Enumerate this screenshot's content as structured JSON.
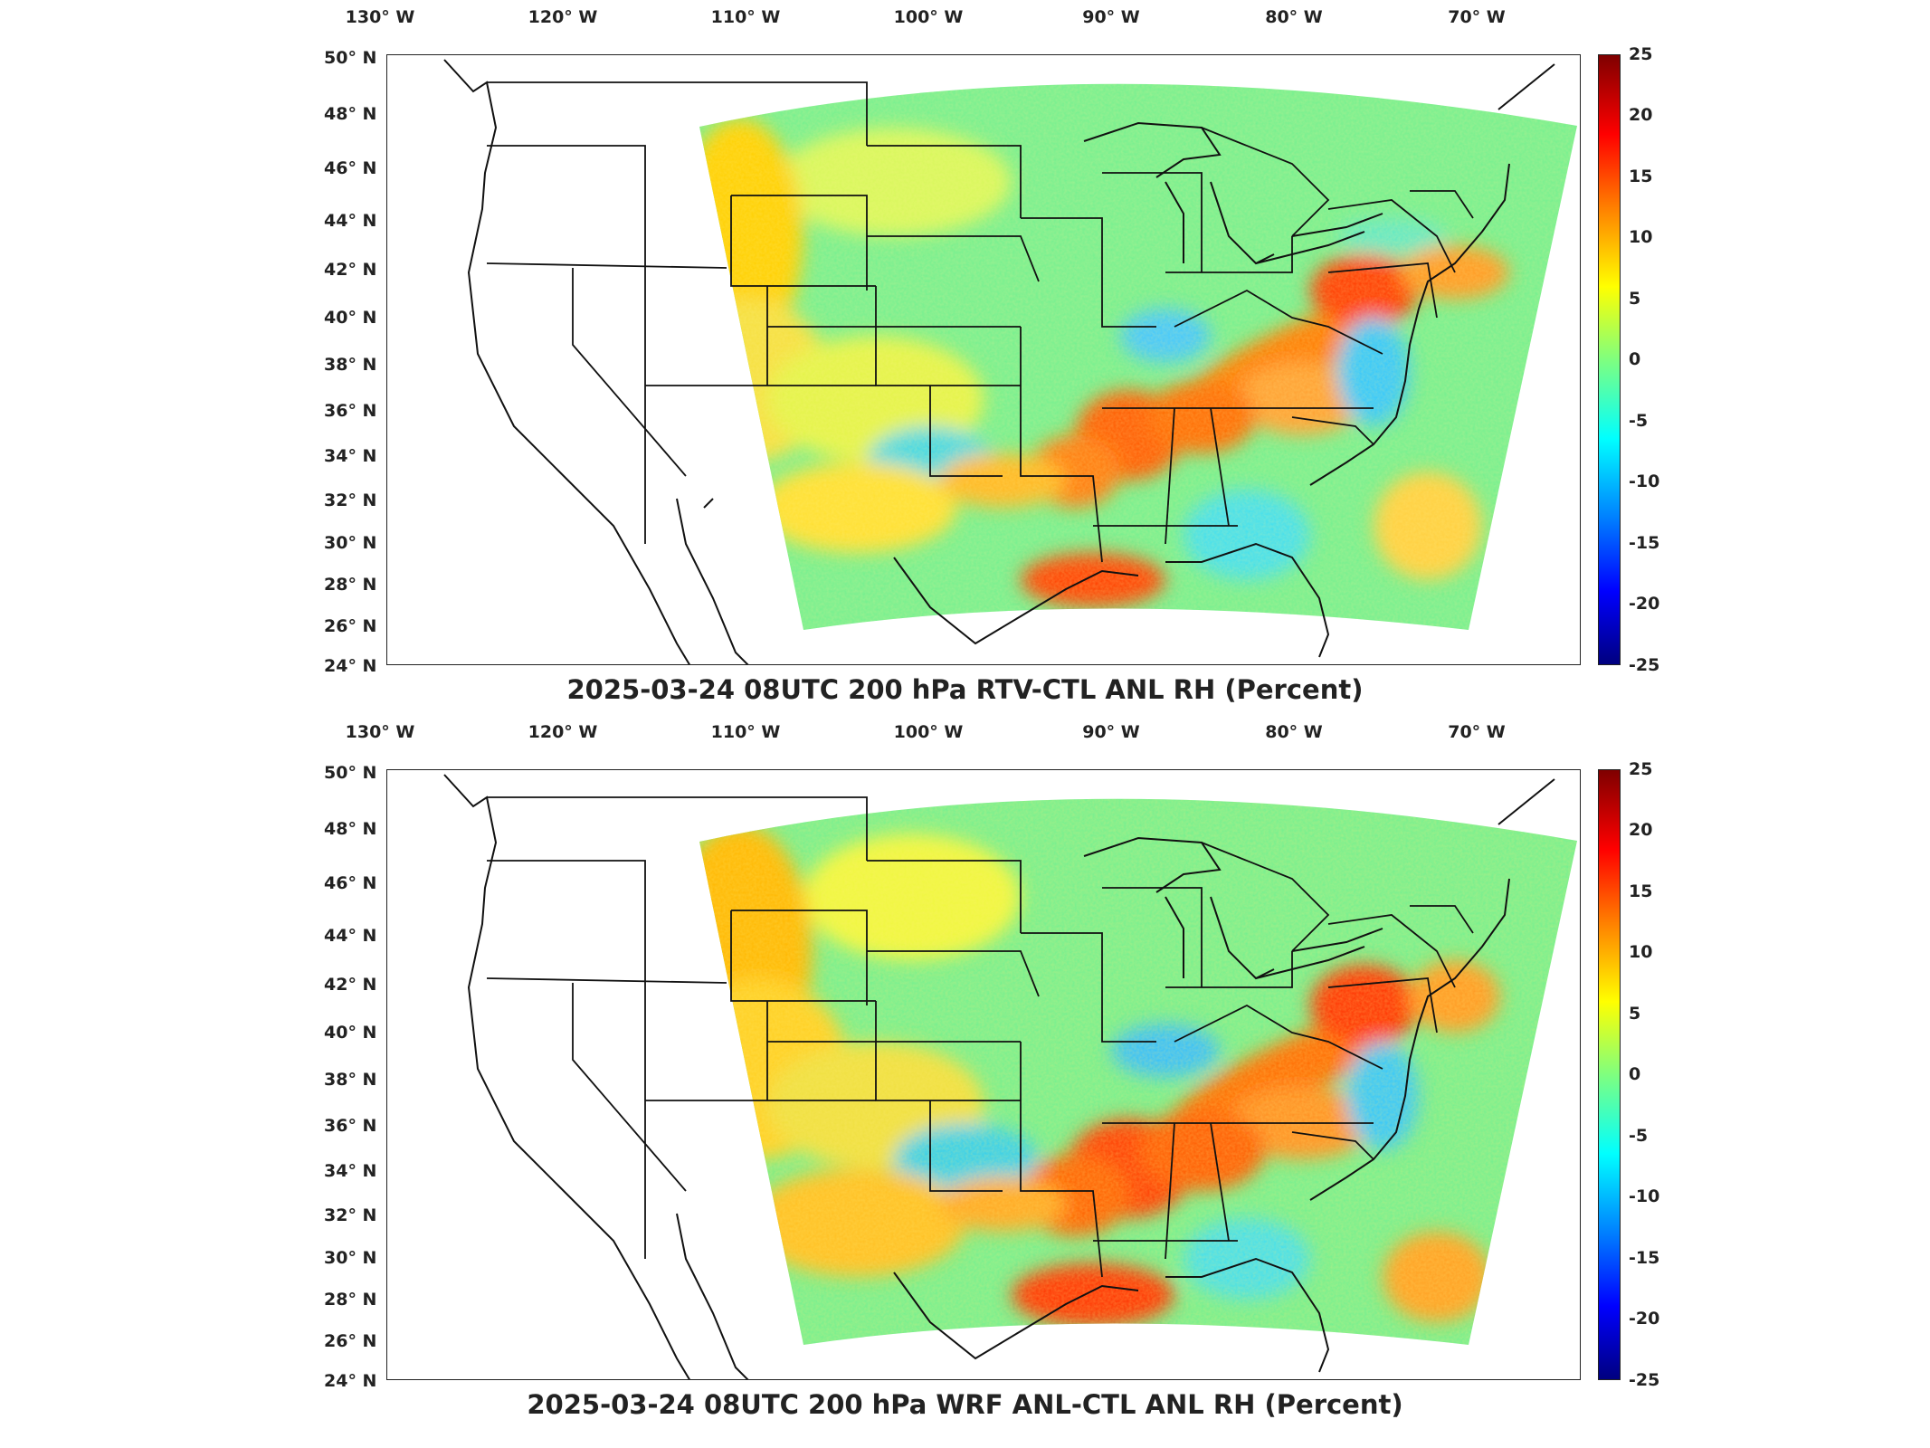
{
  "panels": [
    {
      "title": "2025-03-24 08UTC 200 hPa RTV-CTL ANL RH (Percent)",
      "lon_labels": [
        "130° W",
        "120° W",
        "110° W",
        "100° W",
        "90° W",
        "80° W",
        "70° W"
      ],
      "lat_labels": [
        "50° N",
        "48° N",
        "46° N",
        "44° N",
        "42° N",
        "40° N",
        "38° N",
        "36° N",
        "34° N",
        "32° N",
        "30° N",
        "28° N",
        "26° N",
        "24° N"
      ],
      "colorbar_ticks": [
        "25",
        "20",
        "15",
        "10",
        "5",
        "0",
        "-5",
        "-10",
        "-15",
        "-20",
        "-25"
      ]
    },
    {
      "title": "2025-03-24 08UTC 200 hPa WRF ANL-CTL ANL RH (Percent)",
      "lon_labels": [
        "130° W",
        "120° W",
        "110° W",
        "100° W",
        "90° W",
        "80° W",
        "70° W"
      ],
      "lat_labels": [
        "50° N",
        "48° N",
        "46° N",
        "44° N",
        "42° N",
        "40° N",
        "38° N",
        "36° N",
        "34° N",
        "32° N",
        "30° N",
        "28° N",
        "26° N",
        "24° N"
      ],
      "colorbar_ticks": [
        "25",
        "20",
        "15",
        "10",
        "5",
        "0",
        "-5",
        "-10",
        "-15",
        "-20",
        "-25"
      ]
    }
  ],
  "colormap": [
    "#00007f",
    "#0000ff",
    "#007fff",
    "#00ffff",
    "#7fff7f",
    "#ffff00",
    "#ff7f00",
    "#ff0000",
    "#7f0000"
  ],
  "colorbar_range": [
    -25,
    25
  ],
  "map_extent": {
    "lon": [
      -132,
      -66
    ],
    "lat": [
      24,
      50
    ]
  }
}
